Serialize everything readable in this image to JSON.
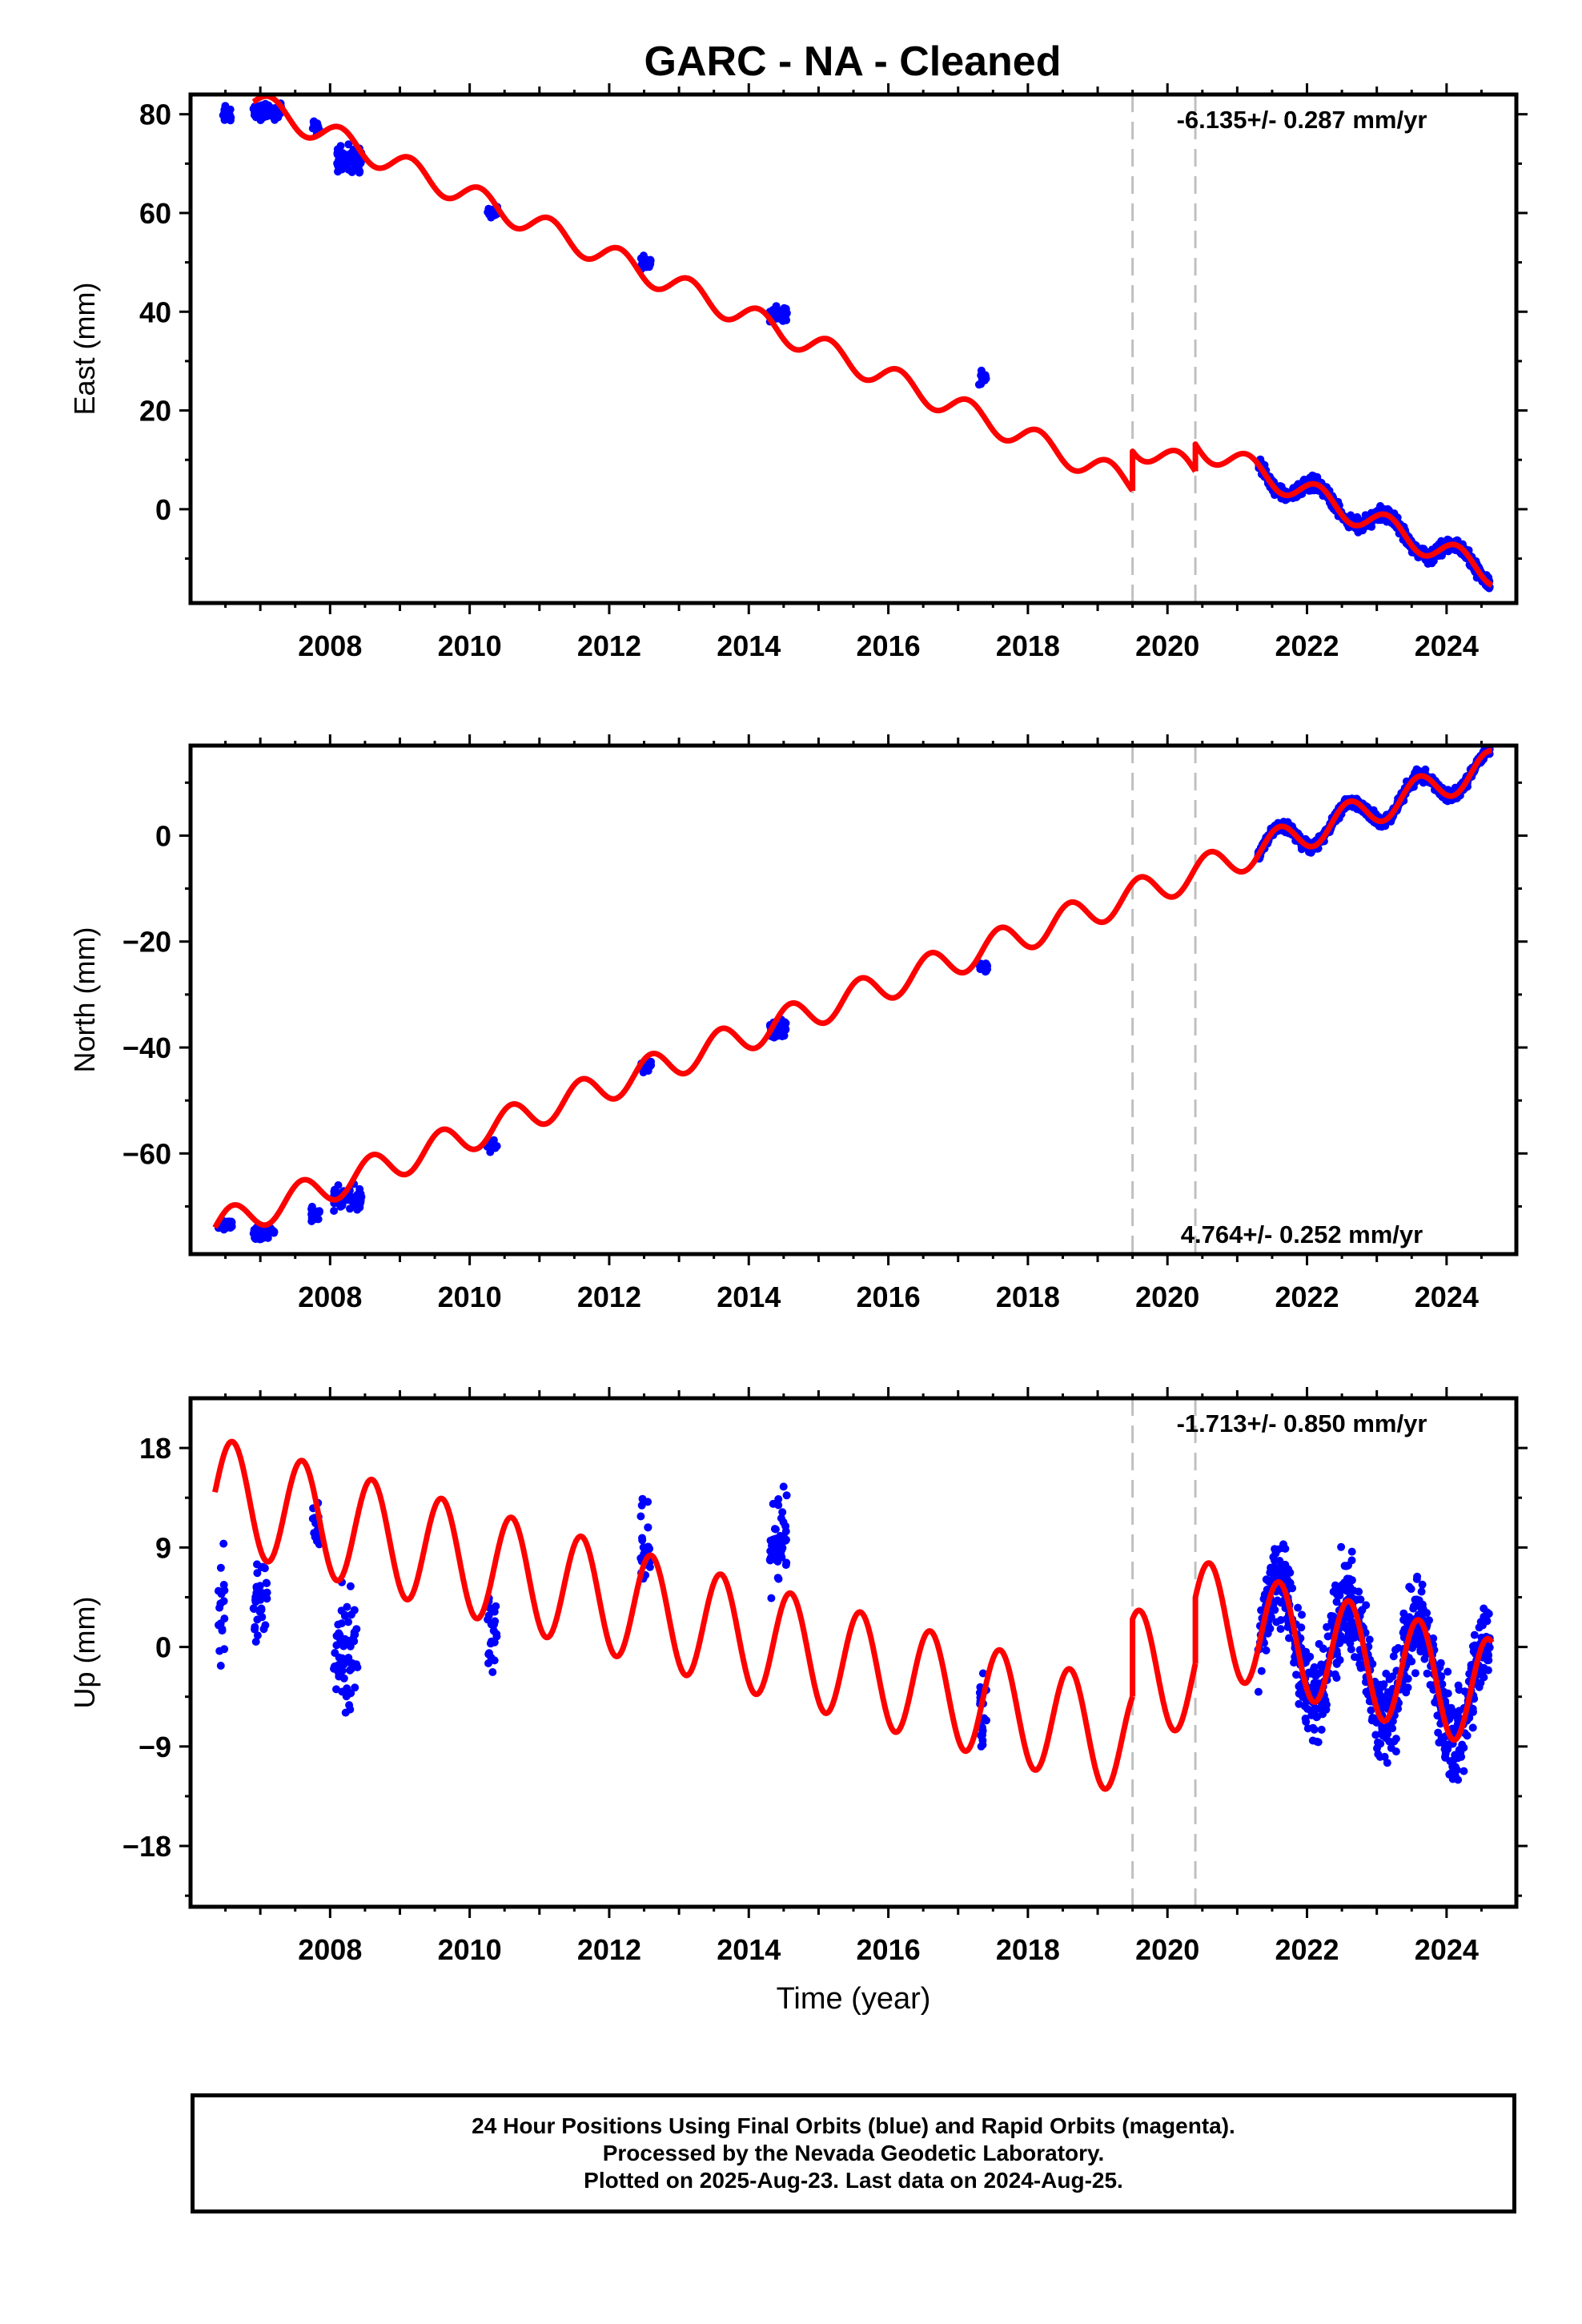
{
  "figure": {
    "title": "GARC  - NA - Cleaned",
    "xlabel": "Time (year)"
  },
  "colors": {
    "final_orbits": "#0000ff",
    "model_fit": "#ff0000",
    "equipment_change": "#c0c0c0"
  },
  "x_ticks": [
    "2008",
    "2010",
    "2012",
    "2014",
    "2016",
    "2018",
    "2020",
    "2022",
    "2024"
  ],
  "chart_data": [
    {
      "type": "scatter",
      "component": "East",
      "ylabel": "East (mm)",
      "velocity_label": "-6.135+/- 0.287 mm/yr",
      "velocity_mm_per_yr": -6.135,
      "velocity_sigma": 0.287,
      "xlim": [
        2006.0,
        2025.0
      ],
      "ylim": [
        -19,
        84
      ],
      "yticks": [
        80,
        60,
        40,
        20,
        0
      ],
      "equipment_changes": [
        2019.5,
        2020.4
      ],
      "model": {
        "name": "fit",
        "start": 2006.9,
        "end": 2024.65,
        "intercept_year": 2006.9,
        "intercept_mm": 82.5,
        "slope_mm_per_yr": -6.135,
        "annual_amplitude_mm": 2.5,
        "offsets": [
          {
            "year": 2019.5,
            "mm": 8.0
          },
          {
            "year": 2020.4,
            "mm": 5.5
          }
        ]
      },
      "series": [
        {
          "clusters": [
            {
              "start": 2006.45,
              "end": 2006.6,
              "center": 80.0,
              "spread": 1.5
            },
            {
              "start": 2006.9,
              "end": 2007.3,
              "center": 80.5,
              "spread": 1.5
            },
            {
              "start": 2007.75,
              "end": 2007.85,
              "center": 77.5,
              "spread": 1.5
            },
            {
              "start": 2008.1,
              "end": 2008.45,
              "center": 71.0,
              "spread": 2.5
            },
            {
              "start": 2010.25,
              "end": 2010.4,
              "center": 60.0,
              "spread": 1.2
            },
            {
              "start": 2012.45,
              "end": 2012.6,
              "center": 50.0,
              "spread": 1.3
            },
            {
              "start": 2014.3,
              "end": 2014.55,
              "center": 39.5,
              "spread": 2.0
            },
            {
              "start": 2017.3,
              "end": 2017.4,
              "center": 26.5,
              "spread": 1.2
            },
            {
              "start": 2021.3,
              "end": 2024.62,
              "center": "model",
              "spread": 1.4,
              "density": 230
            }
          ]
        }
      ]
    },
    {
      "type": "scatter",
      "component": "North",
      "ylabel": "North (mm)",
      "velocity_label": "4.764+/- 0.252 mm/yr",
      "velocity_mm_per_yr": 4.764,
      "velocity_sigma": 0.252,
      "xlim": [
        2006.0,
        2025.0
      ],
      "ylim": [
        -79,
        17
      ],
      "yticks": [
        0,
        -20,
        -40,
        -60
      ],
      "equipment_changes": [
        2019.5,
        2020.4
      ],
      "model": {
        "name": "fit",
        "start": 2006.35,
        "end": 2024.65,
        "intercept_year": 2006.35,
        "intercept_mm": -74.0,
        "slope_mm_per_yr": 4.764,
        "annual_amplitude_mm": 3.0,
        "offsets": []
      },
      "series": [
        {
          "clusters": [
            {
              "start": 2006.4,
              "end": 2006.6,
              "center": -73.5,
              "spread": 1.0
            },
            {
              "start": 2006.9,
              "end": 2007.2,
              "center": -75.0,
              "spread": 1.2
            },
            {
              "start": 2007.7,
              "end": 2007.85,
              "center": -71.5,
              "spread": 1.0
            },
            {
              "start": 2008.05,
              "end": 2008.45,
              "center": -68.5,
              "spread": 2.0
            },
            {
              "start": 2010.25,
              "end": 2010.4,
              "center": -58.5,
              "spread": 1.0
            },
            {
              "start": 2012.45,
              "end": 2012.6,
              "center": -43.5,
              "spread": 1.0
            },
            {
              "start": 2014.3,
              "end": 2014.55,
              "center": -36.5,
              "spread": 1.5
            },
            {
              "start": 2017.3,
              "end": 2017.42,
              "center": -24.5,
              "spread": 1.0
            },
            {
              "start": 2021.3,
              "end": 2024.62,
              "center": "model",
              "spread": 1.1,
              "density": 230
            }
          ]
        }
      ]
    },
    {
      "type": "scatter",
      "component": "Up",
      "ylabel": "Up (mm)",
      "velocity_label": "-1.713+/- 0.850 mm/yr",
      "velocity_mm_per_yr": -1.713,
      "velocity_sigma": 0.85,
      "xlim": [
        2006.0,
        2025.0
      ],
      "ylim": [
        -23.5,
        22.5
      ],
      "yticks": [
        18,
        9,
        0,
        -9,
        -18
      ],
      "equipment_changes": [
        2019.5,
        2020.4
      ],
      "model": {
        "name": "fit",
        "start": 2006.35,
        "end": 2024.65,
        "intercept_year": 2006.35,
        "intercept_mm": 14.0,
        "slope_mm_per_yr": -1.713,
        "annual_amplitude_mm": 5.0,
        "offsets": [
          {
            "year": 2019.5,
            "mm": 7.0
          },
          {
            "year": 2020.4,
            "mm": 6.0
          }
        ]
      },
      "series": [
        {
          "clusters": [
            {
              "start": 2006.4,
              "end": 2006.5,
              "center": 3.0,
              "spread": 4.5
            },
            {
              "start": 2006.9,
              "end": 2007.1,
              "center": 4.0,
              "spread": 4.5
            },
            {
              "start": 2007.75,
              "end": 2007.85,
              "center": 11.0,
              "spread": 2.0
            },
            {
              "start": 2008.05,
              "end": 2008.4,
              "center": 0.0,
              "spread": 5.5
            },
            {
              "start": 2010.25,
              "end": 2010.4,
              "center": 1.5,
              "spread": 4.0
            },
            {
              "start": 2012.45,
              "end": 2012.6,
              "center": 9.0,
              "spread": 4.0
            },
            {
              "start": 2014.3,
              "end": 2014.55,
              "center": 9.5,
              "spread": 4.5
            },
            {
              "start": 2017.3,
              "end": 2017.42,
              "center": -6.0,
              "spread": 5.0
            },
            {
              "start": 2021.3,
              "end": 2024.62,
              "center": "model",
              "spread": 4.0,
              "density": 260
            }
          ]
        }
      ]
    }
  ],
  "footer": {
    "line1": "24 Hour Positions Using Final Orbits (blue) and Rapid Orbits (magenta).",
    "line2": "Processed by the Nevada Geodetic Laboratory.",
    "line3": "Plotted on 2025-Aug-23. Last data on 2024-Aug-25."
  }
}
